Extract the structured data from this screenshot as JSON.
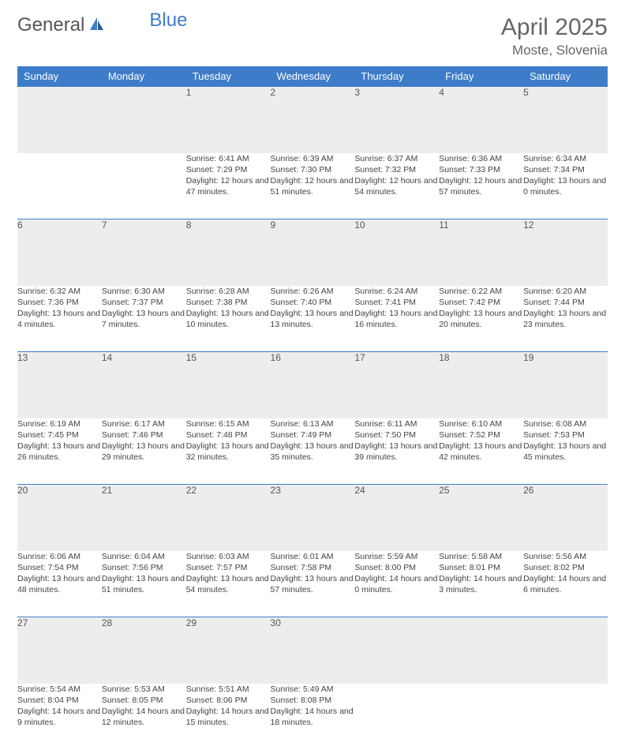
{
  "brand": {
    "part1": "General",
    "part2": "Blue"
  },
  "title": "April 2025",
  "location": "Moste, Slovenia",
  "day_headers": [
    "Sunday",
    "Monday",
    "Tuesday",
    "Wednesday",
    "Thursday",
    "Friday",
    "Saturday"
  ],
  "colors": {
    "header_bg": "#3d7cc9",
    "header_text": "#ffffff",
    "daynum_bg": "#ededed",
    "border": "#3d7cc9",
    "text": "#444444",
    "title_text": "#666666"
  },
  "typography": {
    "title_fontsize": 30,
    "location_fontsize": 17,
    "header_fontsize": 13,
    "daynum_fontsize": 12,
    "detail_fontsize": 10.5
  },
  "weeks": [
    [
      null,
      null,
      {
        "n": "1",
        "sunrise": "Sunrise: 6:41 AM",
        "sunset": "Sunset: 7:29 PM",
        "daylight": "Daylight: 12 hours and 47 minutes."
      },
      {
        "n": "2",
        "sunrise": "Sunrise: 6:39 AM",
        "sunset": "Sunset: 7:30 PM",
        "daylight": "Daylight: 12 hours and 51 minutes."
      },
      {
        "n": "3",
        "sunrise": "Sunrise: 6:37 AM",
        "sunset": "Sunset: 7:32 PM",
        "daylight": "Daylight: 12 hours and 54 minutes."
      },
      {
        "n": "4",
        "sunrise": "Sunrise: 6:36 AM",
        "sunset": "Sunset: 7:33 PM",
        "daylight": "Daylight: 12 hours and 57 minutes."
      },
      {
        "n": "5",
        "sunrise": "Sunrise: 6:34 AM",
        "sunset": "Sunset: 7:34 PM",
        "daylight": "Daylight: 13 hours and 0 minutes."
      }
    ],
    [
      {
        "n": "6",
        "sunrise": "Sunrise: 6:32 AM",
        "sunset": "Sunset: 7:36 PM",
        "daylight": "Daylight: 13 hours and 4 minutes."
      },
      {
        "n": "7",
        "sunrise": "Sunrise: 6:30 AM",
        "sunset": "Sunset: 7:37 PM",
        "daylight": "Daylight: 13 hours and 7 minutes."
      },
      {
        "n": "8",
        "sunrise": "Sunrise: 6:28 AM",
        "sunset": "Sunset: 7:38 PM",
        "daylight": "Daylight: 13 hours and 10 minutes."
      },
      {
        "n": "9",
        "sunrise": "Sunrise: 6:26 AM",
        "sunset": "Sunset: 7:40 PM",
        "daylight": "Daylight: 13 hours and 13 minutes."
      },
      {
        "n": "10",
        "sunrise": "Sunrise: 6:24 AM",
        "sunset": "Sunset: 7:41 PM",
        "daylight": "Daylight: 13 hours and 16 minutes."
      },
      {
        "n": "11",
        "sunrise": "Sunrise: 6:22 AM",
        "sunset": "Sunset: 7:42 PM",
        "daylight": "Daylight: 13 hours and 20 minutes."
      },
      {
        "n": "12",
        "sunrise": "Sunrise: 6:20 AM",
        "sunset": "Sunset: 7:44 PM",
        "daylight": "Daylight: 13 hours and 23 minutes."
      }
    ],
    [
      {
        "n": "13",
        "sunrise": "Sunrise: 6:19 AM",
        "sunset": "Sunset: 7:45 PM",
        "daylight": "Daylight: 13 hours and 26 minutes."
      },
      {
        "n": "14",
        "sunrise": "Sunrise: 6:17 AM",
        "sunset": "Sunset: 7:46 PM",
        "daylight": "Daylight: 13 hours and 29 minutes."
      },
      {
        "n": "15",
        "sunrise": "Sunrise: 6:15 AM",
        "sunset": "Sunset: 7:48 PM",
        "daylight": "Daylight: 13 hours and 32 minutes."
      },
      {
        "n": "16",
        "sunrise": "Sunrise: 6:13 AM",
        "sunset": "Sunset: 7:49 PM",
        "daylight": "Daylight: 13 hours and 35 minutes."
      },
      {
        "n": "17",
        "sunrise": "Sunrise: 6:11 AM",
        "sunset": "Sunset: 7:50 PM",
        "daylight": "Daylight: 13 hours and 39 minutes."
      },
      {
        "n": "18",
        "sunrise": "Sunrise: 6:10 AM",
        "sunset": "Sunset: 7:52 PM",
        "daylight": "Daylight: 13 hours and 42 minutes."
      },
      {
        "n": "19",
        "sunrise": "Sunrise: 6:08 AM",
        "sunset": "Sunset: 7:53 PM",
        "daylight": "Daylight: 13 hours and 45 minutes."
      }
    ],
    [
      {
        "n": "20",
        "sunrise": "Sunrise: 6:06 AM",
        "sunset": "Sunset: 7:54 PM",
        "daylight": "Daylight: 13 hours and 48 minutes."
      },
      {
        "n": "21",
        "sunrise": "Sunrise: 6:04 AM",
        "sunset": "Sunset: 7:56 PM",
        "daylight": "Daylight: 13 hours and 51 minutes."
      },
      {
        "n": "22",
        "sunrise": "Sunrise: 6:03 AM",
        "sunset": "Sunset: 7:57 PM",
        "daylight": "Daylight: 13 hours and 54 minutes."
      },
      {
        "n": "23",
        "sunrise": "Sunrise: 6:01 AM",
        "sunset": "Sunset: 7:58 PM",
        "daylight": "Daylight: 13 hours and 57 minutes."
      },
      {
        "n": "24",
        "sunrise": "Sunrise: 5:59 AM",
        "sunset": "Sunset: 8:00 PM",
        "daylight": "Daylight: 14 hours and 0 minutes."
      },
      {
        "n": "25",
        "sunrise": "Sunrise: 5:58 AM",
        "sunset": "Sunset: 8:01 PM",
        "daylight": "Daylight: 14 hours and 3 minutes."
      },
      {
        "n": "26",
        "sunrise": "Sunrise: 5:56 AM",
        "sunset": "Sunset: 8:02 PM",
        "daylight": "Daylight: 14 hours and 6 minutes."
      }
    ],
    [
      {
        "n": "27",
        "sunrise": "Sunrise: 5:54 AM",
        "sunset": "Sunset: 8:04 PM",
        "daylight": "Daylight: 14 hours and 9 minutes."
      },
      {
        "n": "28",
        "sunrise": "Sunrise: 5:53 AM",
        "sunset": "Sunset: 8:05 PM",
        "daylight": "Daylight: 14 hours and 12 minutes."
      },
      {
        "n": "29",
        "sunrise": "Sunrise: 5:51 AM",
        "sunset": "Sunset: 8:06 PM",
        "daylight": "Daylight: 14 hours and 15 minutes."
      },
      {
        "n": "30",
        "sunrise": "Sunrise: 5:49 AM",
        "sunset": "Sunset: 8:08 PM",
        "daylight": "Daylight: 14 hours and 18 minutes."
      },
      null,
      null,
      null
    ]
  ]
}
